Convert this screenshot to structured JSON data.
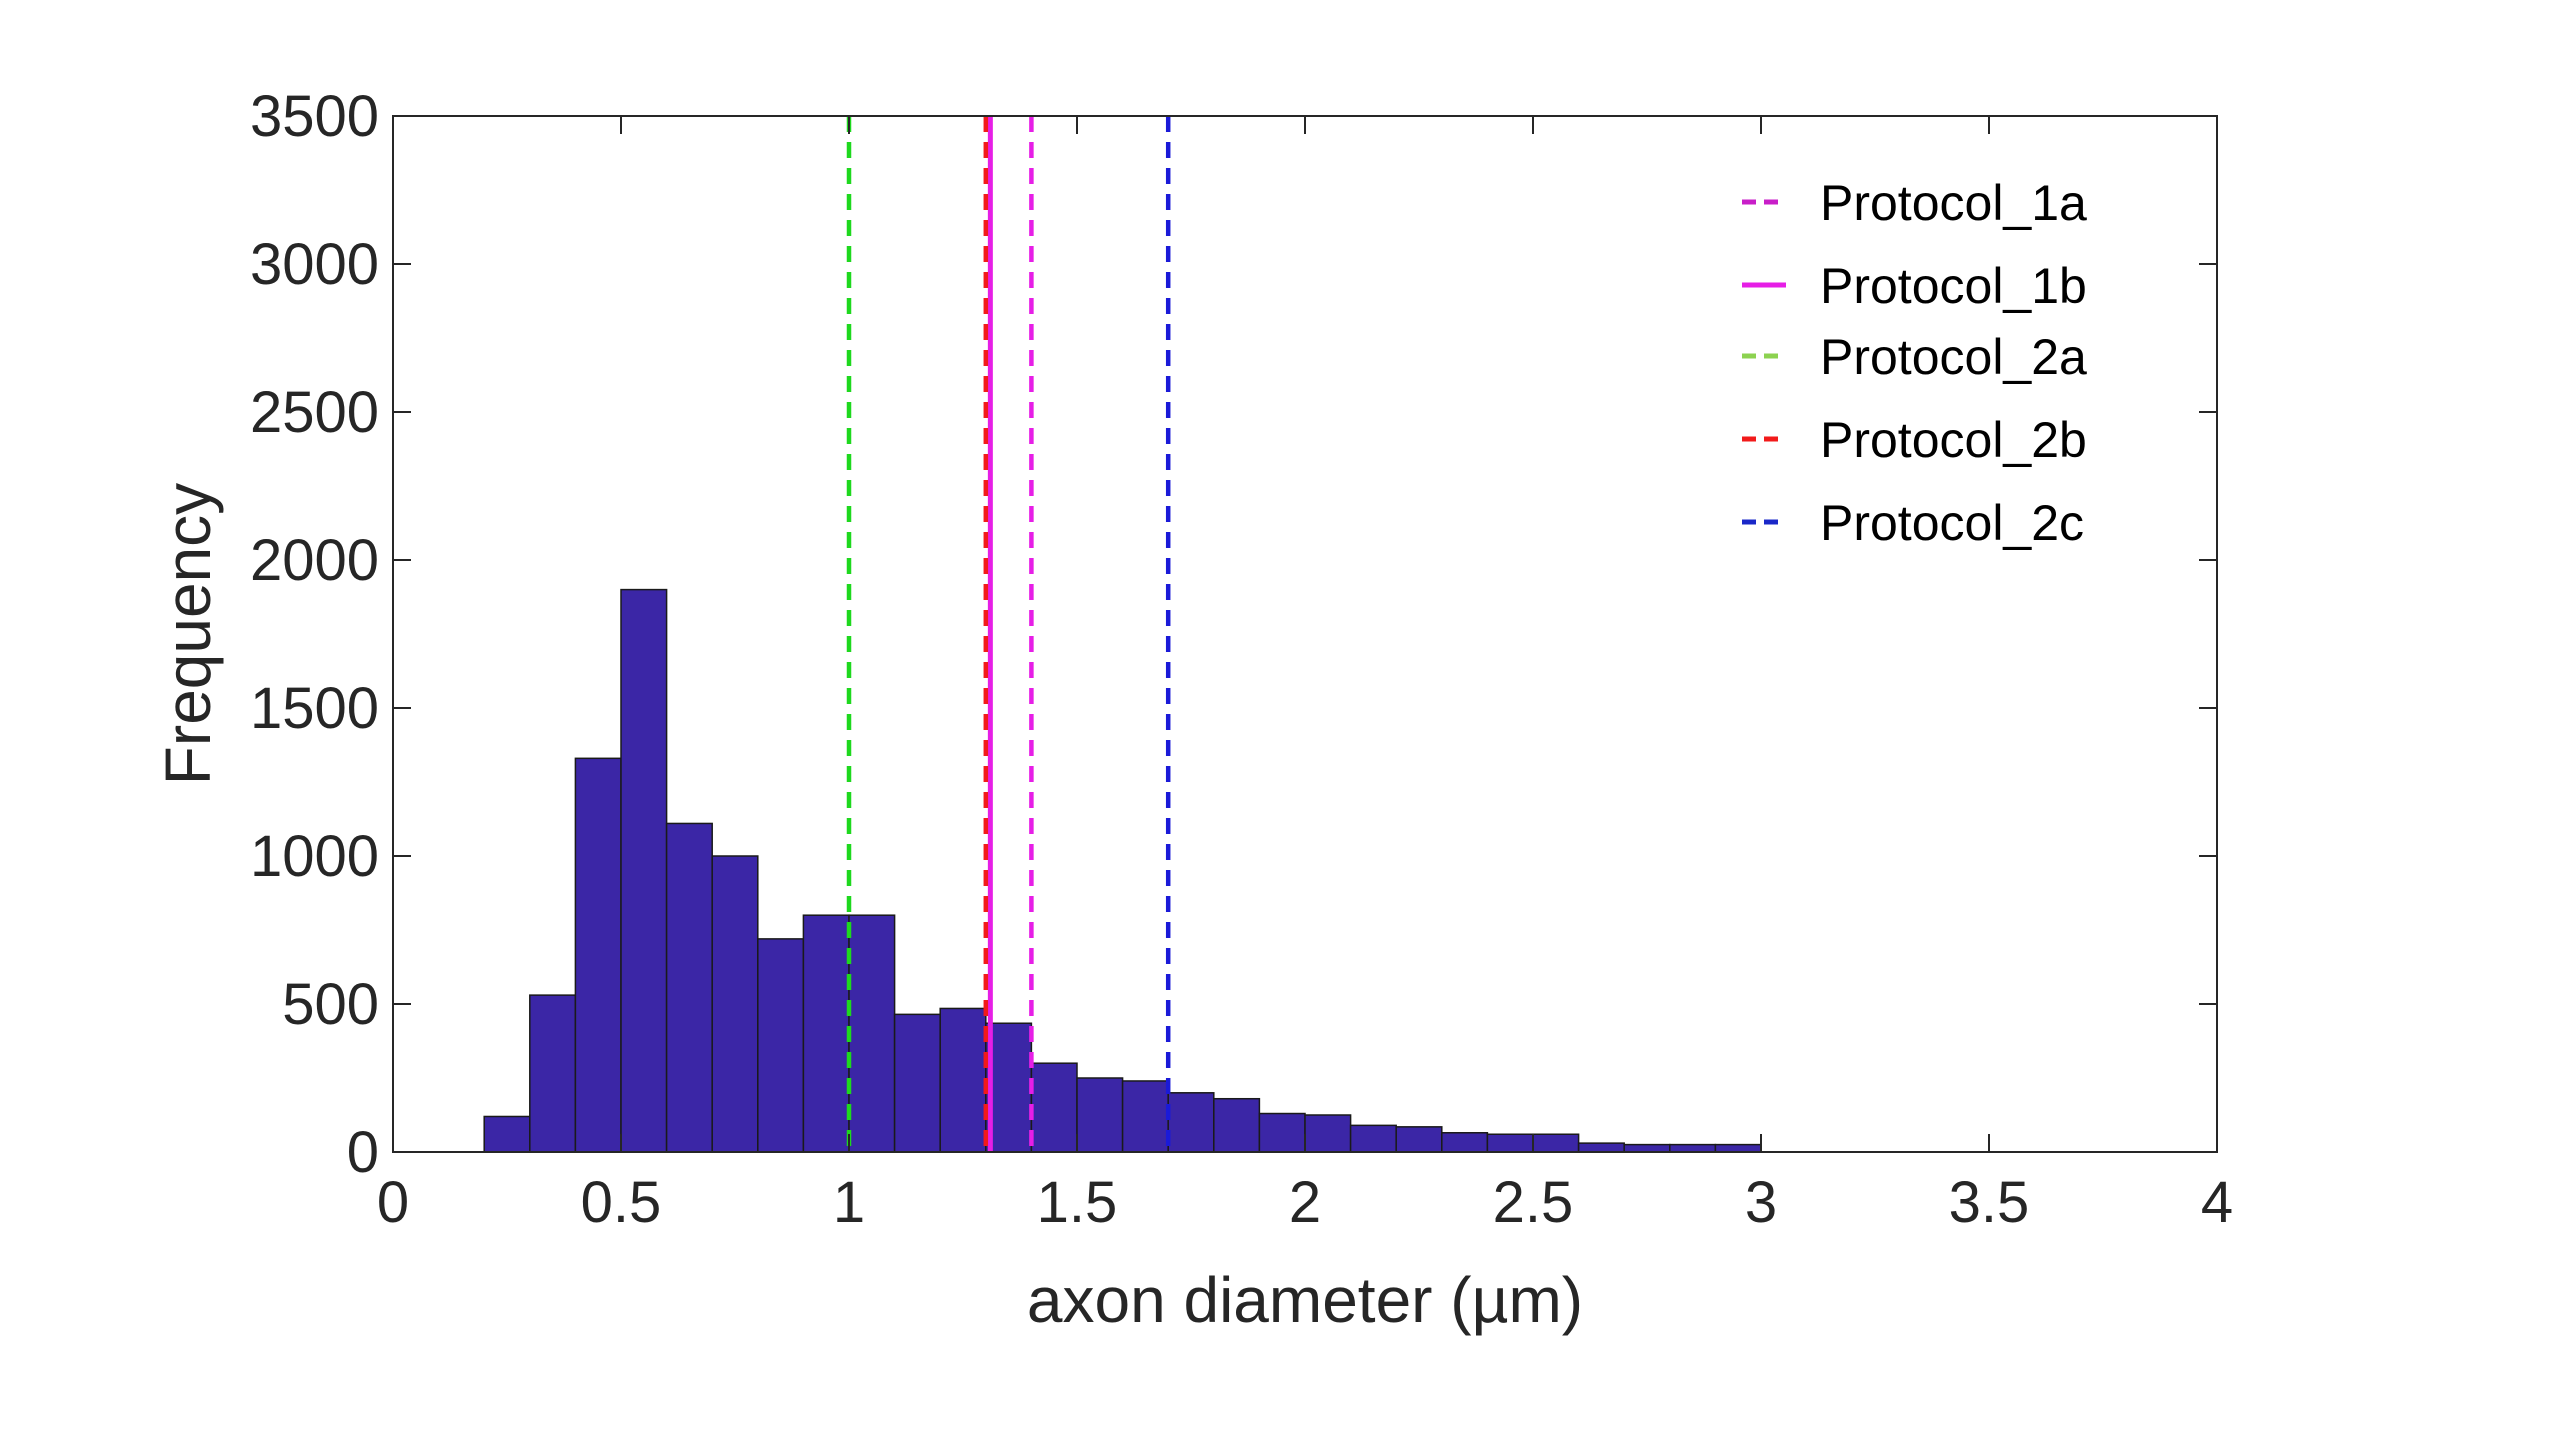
{
  "chart_data": {
    "type": "bar",
    "title": "",
    "xlabel": "axon diameter (µm)",
    "ylabel": "Frequency",
    "xlim": [
      0,
      4
    ],
    "ylim": [
      0,
      3500
    ],
    "grid": false,
    "legend_position": "top-right",
    "bar_color": "#3b26a6",
    "bin_edges": [
      0.2,
      0.3,
      0.4,
      0.5,
      0.6,
      0.7,
      0.8,
      0.9,
      1.0,
      1.1,
      1.2,
      1.3,
      1.4,
      1.5,
      1.6,
      1.7,
      1.8,
      1.9,
      2.0,
      2.1,
      2.2,
      2.3,
      2.4,
      2.5,
      2.6,
      2.7,
      2.8,
      2.9,
      3.0
    ],
    "values": [
      120,
      530,
      1330,
      1900,
      1110,
      1000,
      720,
      800,
      800,
      465,
      485,
      435,
      300,
      250,
      240,
      200,
      180,
      130,
      125,
      90,
      85,
      65,
      60,
      60,
      30,
      25,
      25,
      25
    ],
    "x_ticks": [
      "0",
      "0.5",
      "1",
      "1.5",
      "2",
      "2.5",
      "3",
      "3.5",
      "4"
    ],
    "x_tick_values": [
      0,
      0.5,
      1,
      1.5,
      2,
      2.5,
      3,
      3.5,
      4
    ],
    "y_ticks": [
      "0",
      "500",
      "1000",
      "1500",
      "2000",
      "2500",
      "3000",
      "3500"
    ],
    "y_tick_values": [
      0,
      500,
      1000,
      1500,
      2000,
      2500,
      3000,
      3500
    ],
    "reference_lines": [
      {
        "name": "Protocol_1a",
        "x": 1.4,
        "style": "dashed",
        "color": "#e61ee6"
      },
      {
        "name": "Protocol_1b",
        "x": 1.31,
        "style": "solid",
        "color": "#e61ee6"
      },
      {
        "name": "Protocol_2a",
        "x": 1.0,
        "style": "dashed",
        "color": "#1ed81e"
      },
      {
        "name": "Protocol_2b",
        "x": 1.3,
        "style": "dashed",
        "color": "#f21a1a"
      },
      {
        "name": "Protocol_2c",
        "x": 1.7,
        "style": "dashed",
        "color": "#1a1ad8"
      }
    ],
    "legend": [
      {
        "label": "Protocol_1a",
        "style": "dashed",
        "color": "#c81ec8"
      },
      {
        "label": "Protocol_1b",
        "style": "solid",
        "color": "#e61ee6"
      },
      {
        "label": "Protocol_2a",
        "style": "dashed",
        "color": "#8cd250"
      },
      {
        "label": "Protocol_2b",
        "style": "dashed",
        "color": "#f21a1a"
      },
      {
        "label": "Protocol_2c",
        "style": "dashed",
        "color": "#1a28c8"
      }
    ]
  }
}
